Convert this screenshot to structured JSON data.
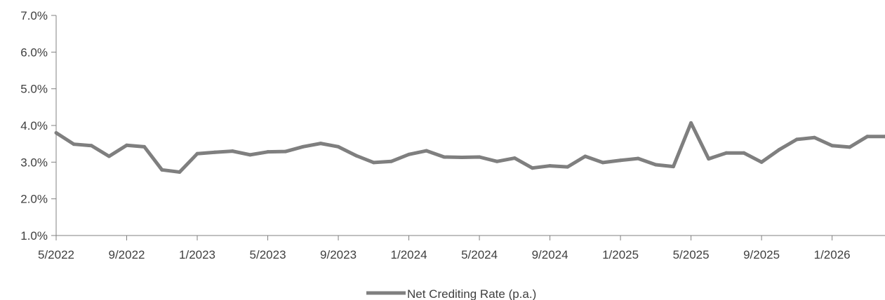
{
  "chart_data": {
    "type": "line",
    "title": "",
    "xlabel": "",
    "ylabel": "",
    "ylim": [
      0.01,
      0.07
    ],
    "y_ticks": [
      "1.0%",
      "2.0%",
      "3.0%",
      "4.0%",
      "5.0%",
      "6.0%",
      "7.0%"
    ],
    "x_ticks": [
      "5/2022",
      "9/2022",
      "1/2023",
      "5/2023",
      "9/2023",
      "1/2024",
      "5/2024",
      "9/2024",
      "1/2025",
      "5/2025",
      "9/2025",
      "1/2026"
    ],
    "grid": false,
    "legend_position": "bottom-center",
    "series": [
      {
        "name": "Net Crediting Rate (p.a.)",
        "color": "#7f7f7f",
        "x": [
          "5/2022",
          "6/2022",
          "7/2022",
          "8/2022",
          "9/2022",
          "10/2022",
          "11/2022",
          "12/2022",
          "1/2023",
          "2/2023",
          "3/2023",
          "4/2023",
          "5/2023",
          "6/2023",
          "7/2023",
          "8/2023",
          "9/2023",
          "10/2023",
          "11/2023",
          "12/2023",
          "1/2024",
          "2/2024",
          "3/2024",
          "4/2024",
          "5/2024",
          "6/2024",
          "7/2024",
          "8/2024",
          "9/2024",
          "10/2024",
          "11/2024",
          "12/2024",
          "1/2025",
          "2/2025",
          "3/2025",
          "4/2025",
          "5/2025",
          "6/2025",
          "7/2025",
          "8/2025",
          "9/2025",
          "10/2025",
          "11/2025",
          "12/2025",
          "1/2026",
          "2/2026",
          "3/2026",
          "4/2026"
        ],
        "values": [
          0.038,
          0.0349,
          0.0345,
          0.0316,
          0.0346,
          0.0342,
          0.0279,
          0.0273,
          0.0323,
          0.0327,
          0.033,
          0.032,
          0.0328,
          0.0329,
          0.0342,
          0.0351,
          0.0342,
          0.0318,
          0.0299,
          0.0302,
          0.0321,
          0.0331,
          0.0314,
          0.0313,
          0.0314,
          0.0302,
          0.0311,
          0.0284,
          0.029,
          0.0287,
          0.0316,
          0.0299,
          0.0305,
          0.031,
          0.0293,
          0.0288,
          0.0407,
          0.0309,
          0.0325,
          0.0325,
          0.03,
          0.0334,
          0.0362,
          0.0367,
          0.0345,
          0.0341,
          0.037,
          0.037
        ]
      }
    ]
  }
}
